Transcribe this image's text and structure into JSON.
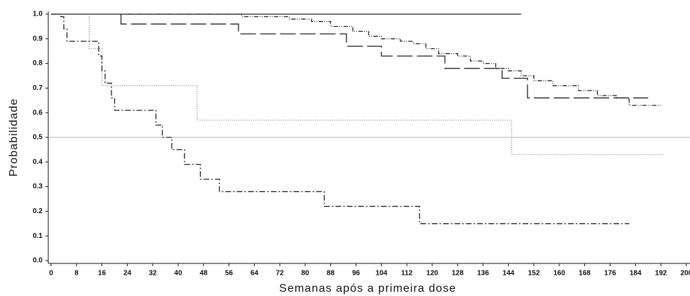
{
  "chart_data": {
    "type": "step",
    "xlabel": "Semanas após a primeira dose",
    "ylabel": "Probabilidade",
    "xlim": [
      0,
      200
    ],
    "ylim": [
      0,
      1
    ],
    "xticks": [
      0,
      8,
      16,
      24,
      32,
      40,
      48,
      56,
      64,
      72,
      80,
      88,
      96,
      104,
      112,
      120,
      128,
      136,
      144,
      152,
      160,
      168,
      176,
      184,
      192,
      200
    ],
    "yticks": [
      {
        "value": 0,
        "label": "0.0"
      },
      0.1,
      0.2,
      0.3,
      0.4,
      0.5,
      0.6,
      0.7,
      0.8,
      0.9,
      {
        "value": 1,
        "label": "1.0"
      }
    ],
    "hline": {
      "value": 0.5,
      "color": "#b0b0b0"
    },
    "series": [
      {
        "color": "#222222",
        "dash": "none",
        "x": [
          0,
          148
        ],
        "values": [
          1.0,
          1.0
        ]
      },
      {
        "color": "#222222",
        "dash": "22,6",
        "x": [
          22,
          22,
          59,
          93,
          104,
          124,
          142,
          150,
          188
        ],
        "values": [
          1.0,
          0.96,
          0.92,
          0.87,
          0.83,
          0.78,
          0.74,
          0.66,
          0.66
        ]
      },
      {
        "color": "#222222",
        "dash": "6,2,1,2,1,2",
        "x": [
          24,
          60,
          75,
          82,
          88,
          95,
          100,
          104,
          110,
          114,
          118,
          122,
          128,
          132,
          136,
          140,
          144,
          148,
          152,
          158,
          166,
          172,
          178,
          182,
          192
        ],
        "values": [
          1.0,
          0.99,
          0.98,
          0.97,
          0.95,
          0.93,
          0.91,
          0.9,
          0.89,
          0.88,
          0.86,
          0.84,
          0.83,
          0.81,
          0.8,
          0.78,
          0.77,
          0.75,
          0.73,
          0.71,
          0.69,
          0.67,
          0.66,
          0.63,
          0.63
        ]
      },
      {
        "color": "#888888",
        "dash": "1,2",
        "x": [
          12,
          12,
          16,
          46,
          145,
          193
        ],
        "values": [
          1.0,
          0.86,
          0.71,
          0.57,
          0.43,
          0.43
        ]
      },
      {
        "color": "#222222",
        "dash": "8,3,2,3",
        "x": [
          0,
          3,
          4,
          5,
          14,
          15,
          16,
          17,
          19,
          20,
          33,
          35,
          38,
          42,
          47,
          53,
          86,
          116,
          182
        ],
        "values": [
          1.0,
          0.99,
          0.94,
          0.89,
          0.89,
          0.83,
          0.77,
          0.72,
          0.66,
          0.61,
          0.55,
          0.5,
          0.45,
          0.39,
          0.33,
          0.28,
          0.22,
          0.15,
          0.15
        ]
      }
    ]
  }
}
